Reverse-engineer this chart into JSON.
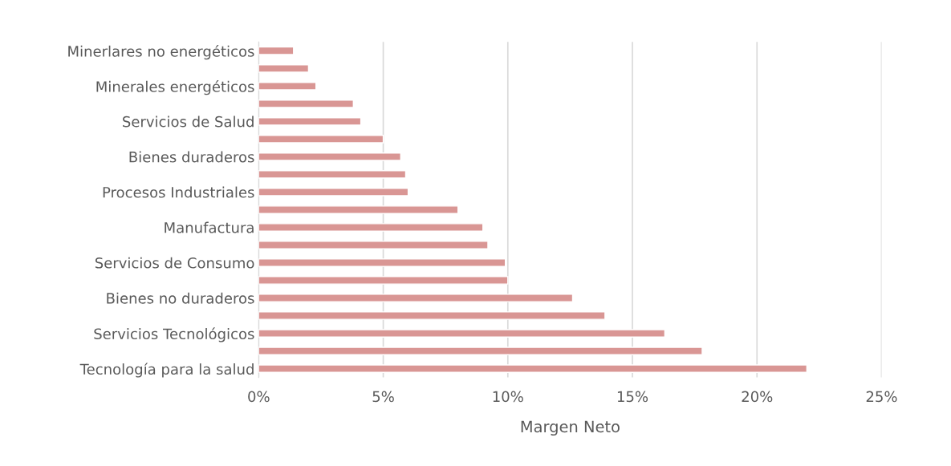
{
  "chart_data": {
    "type": "bar",
    "orientation": "horizontal",
    "xlabel": "Margen Neto",
    "categories": [
      "Minerlares no energéticos",
      null,
      "Minerales energéticos",
      null,
      "Servicios de Salud",
      null,
      "Bienes duraderos",
      null,
      "Procesos Industriales",
      null,
      "Manufactura",
      null,
      "Servicios de Consumo",
      null,
      "Bienes no duraderos",
      null,
      "Servicios Tecnológicos",
      null,
      "Tecnología para la salud"
    ],
    "values": [
      1.4,
      2.0,
      2.3,
      3.8,
      4.1,
      5.0,
      5.7,
      5.9,
      6.0,
      8.0,
      9.0,
      9.2,
      9.9,
      10.0,
      12.6,
      13.9,
      16.3,
      17.8,
      22.0
    ],
    "color": "#d99694",
    "xlim": [
      0,
      25
    ],
    "xticks": [
      {
        "value": 0,
        "label": "0%"
      },
      {
        "value": 5,
        "label": "5%"
      },
      {
        "value": 10,
        "label": "10%"
      },
      {
        "value": 15,
        "label": "15%"
      },
      {
        "value": 20,
        "label": "20%"
      },
      {
        "value": 25,
        "label": "25%"
      }
    ],
    "grid": "x"
  }
}
